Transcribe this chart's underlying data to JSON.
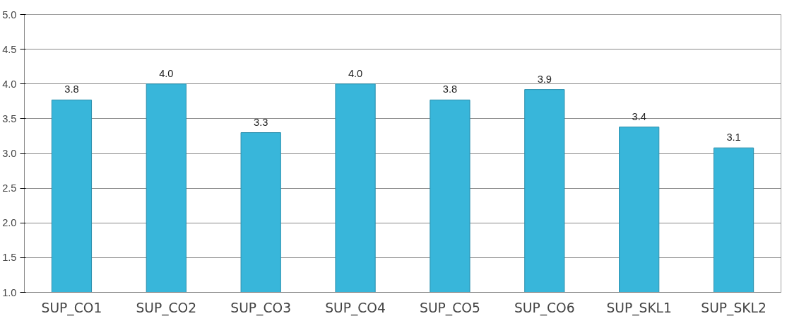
{
  "chart_data": {
    "type": "bar",
    "categories": [
      "SUP_CO1",
      "SUP_CO2",
      "SUP_CO3",
      "SUP_CO4",
      "SUP_CO5",
      "SUP_CO6",
      "SUP_SKL1",
      "SUP_SKL2"
    ],
    "values": [
      3.77,
      4.0,
      3.3,
      4.0,
      3.77,
      3.92,
      3.38,
      3.08
    ],
    "value_labels": [
      "3.8",
      "4.0",
      "3.3",
      "4.0",
      "3.8",
      "3.9",
      "3.4",
      "3.1"
    ],
    "color": "#38b6da",
    "ylim": [
      1.0,
      5.0
    ],
    "yticks": [
      {
        "value": 1.0,
        "label": "1.0"
      },
      {
        "value": 1.5,
        "label": "1.5"
      },
      {
        "value": 2.0,
        "label": "2.0"
      },
      {
        "value": 2.5,
        "label": "2.5"
      },
      {
        "value": 3.0,
        "label": "3.0"
      },
      {
        "value": 3.5,
        "label": "3.5"
      },
      {
        "value": 4.0,
        "label": "4.0"
      },
      {
        "value": 4.5,
        "label": "4.5"
      },
      {
        "value": 5.0,
        "label": "5.0"
      }
    ],
    "grid": "y"
  }
}
